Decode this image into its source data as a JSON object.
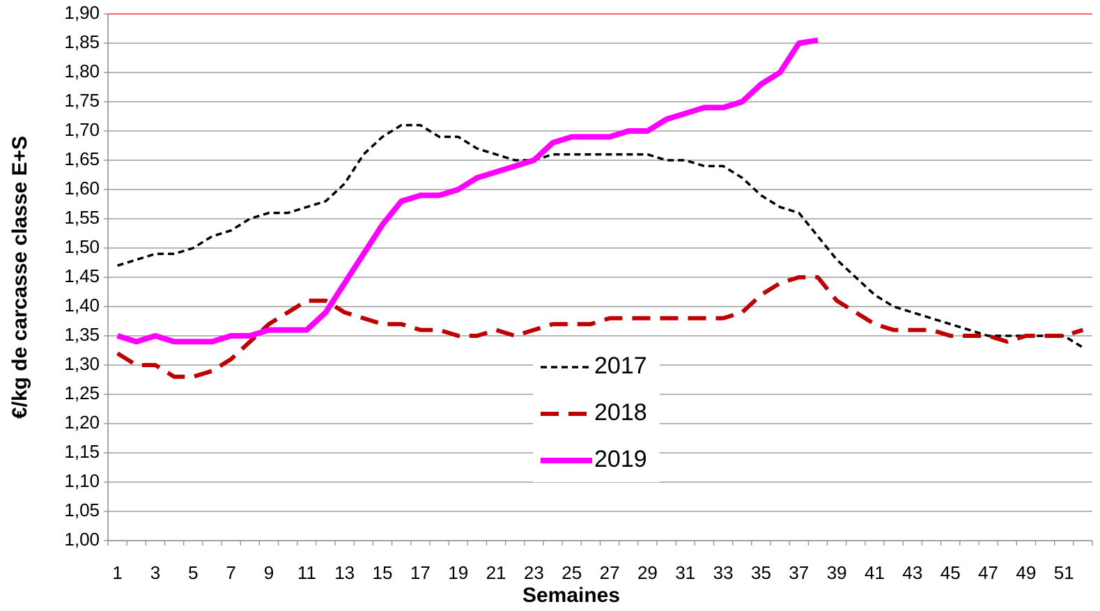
{
  "chart_data": {
    "type": "line",
    "xlabel": "Semaines",
    "ylabel": "€/kg de carcasse classe E+S",
    "categories": [
      1,
      null,
      3,
      null,
      5,
      null,
      7,
      null,
      9,
      null,
      11,
      null,
      13,
      null,
      15,
      null,
      17,
      null,
      19,
      null,
      21,
      null,
      23,
      null,
      25,
      null,
      27,
      null,
      29,
      null,
      31,
      null,
      33,
      null,
      35,
      null,
      37,
      null,
      39,
      null,
      41,
      null,
      43,
      null,
      45,
      null,
      47,
      null,
      49,
      null,
      51,
      null
    ],
    "series": [
      {
        "name": "2017",
        "color": "#000000",
        "style": "dotted",
        "values": [
          1.47,
          1.48,
          1.49,
          1.49,
          1.5,
          1.52,
          1.53,
          1.55,
          1.56,
          1.56,
          1.57,
          1.58,
          1.61,
          1.66,
          1.69,
          1.71,
          1.71,
          1.69,
          1.69,
          1.67,
          1.66,
          1.65,
          1.65,
          1.66,
          1.66,
          1.66,
          1.66,
          1.66,
          1.66,
          1.65,
          1.65,
          1.64,
          1.64,
          1.62,
          1.59,
          1.57,
          1.56,
          1.52,
          1.48,
          1.45,
          1.42,
          1.4,
          1.39,
          1.38,
          1.37,
          1.36,
          1.35,
          1.35,
          1.35,
          1.35,
          1.35,
          1.33
        ]
      },
      {
        "name": "2018",
        "color": "#c00000",
        "style": "dashed",
        "values": [
          1.32,
          1.3,
          1.3,
          1.28,
          1.28,
          1.29,
          1.31,
          1.34,
          1.37,
          1.39,
          1.41,
          1.41,
          1.39,
          1.38,
          1.37,
          1.37,
          1.36,
          1.36,
          1.35,
          1.35,
          1.36,
          1.35,
          1.36,
          1.37,
          1.37,
          1.37,
          1.38,
          1.38,
          1.38,
          1.38,
          1.38,
          1.38,
          1.38,
          1.39,
          1.42,
          1.44,
          1.45,
          1.45,
          1.41,
          1.39,
          1.37,
          1.36,
          1.36,
          1.36,
          1.35,
          1.35,
          1.35,
          1.34,
          1.35,
          1.35,
          1.35,
          1.36
        ]
      },
      {
        "name": "2019",
        "color": "#ff00ff",
        "style": "solid",
        "values": [
          1.35,
          1.34,
          1.35,
          1.34,
          1.34,
          1.34,
          1.35,
          1.35,
          1.36,
          1.36,
          1.36,
          1.39,
          1.44,
          1.49,
          1.54,
          1.58,
          1.59,
          1.59,
          1.6,
          1.62,
          1.63,
          1.64,
          1.65,
          1.68,
          1.69,
          1.69,
          1.69,
          1.7,
          1.7,
          1.72,
          1.73,
          1.74,
          1.74,
          1.75,
          1.78,
          1.8,
          1.85,
          1.855,
          null,
          null,
          null,
          null,
          null,
          null,
          null,
          null,
          null,
          null,
          null,
          null,
          null,
          null
        ]
      }
    ],
    "ylim": [
      1.0,
      1.9
    ],
    "yticks": [
      {
        "value": 1.0,
        "label": "1,00"
      },
      {
        "value": 1.05,
        "label": "1,05"
      },
      {
        "value": 1.1,
        "label": "1,10"
      },
      {
        "value": 1.15,
        "label": "1,15"
      },
      {
        "value": 1.2,
        "label": "1,20"
      },
      {
        "value": 1.25,
        "label": "1,25"
      },
      {
        "value": 1.3,
        "label": "1,30"
      },
      {
        "value": 1.35,
        "label": "1,35"
      },
      {
        "value": 1.4,
        "label": "1,40"
      },
      {
        "value": 1.45,
        "label": "1,45"
      },
      {
        "value": 1.5,
        "label": "1,50"
      },
      {
        "value": 1.55,
        "label": "1,55"
      },
      {
        "value": 1.6,
        "label": "1,60"
      },
      {
        "value": 1.65,
        "label": "1,65"
      },
      {
        "value": 1.7,
        "label": "1,70"
      },
      {
        "value": 1.75,
        "label": "1,75"
      },
      {
        "value": 1.8,
        "label": "1,80"
      },
      {
        "value": 1.85,
        "label": "1,85"
      },
      {
        "value": 1.9,
        "label": "1,90"
      }
    ],
    "grid": true,
    "top_grid_color": "#ff0000"
  }
}
